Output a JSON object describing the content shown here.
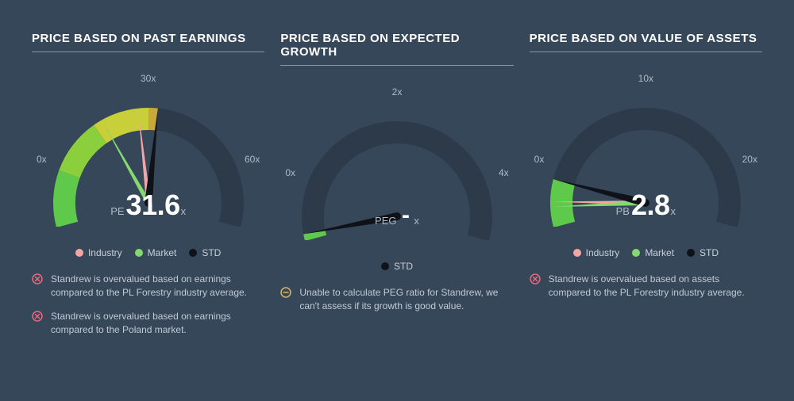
{
  "background_color": "#37475a",
  "text_muted": "#b0bac6",
  "text_body": "#c8d0da",
  "text_white": "#ffffff",
  "rule_color": "#8a96a6",
  "legend_colors": {
    "industry": "#f4a6a6",
    "market": "#86d96f",
    "std": "#0f1218"
  },
  "status_colors": {
    "fail": "#e86a7a",
    "neutral": "#d8b36a"
  },
  "gauge_gradient": [
    "#5fc94b",
    "#8ccf3c",
    "#c8cf38",
    "#c8a83a",
    "#b87548",
    "#9e5150"
  ],
  "gauge_track": "#2d3a4a",
  "panels": [
    {
      "key": "pe",
      "title": "PRICE BASED ON PAST EARNINGS",
      "metric_label": "PE",
      "value_text": "31.6",
      "value_suffix": "x",
      "max": 60,
      "tick_min": "0x",
      "tick_mid": "30x",
      "tick_max": "60x",
      "needles": [
        {
          "fraction": 0.47,
          "color_key": "industry",
          "width": 6
        },
        {
          "fraction": 0.36,
          "color_key": "market",
          "width": 6
        },
        {
          "fraction": 0.527,
          "color_key": "std",
          "width": 10
        }
      ],
      "legend": [
        "industry",
        "market",
        "std"
      ],
      "notes": [
        {
          "status": "fail",
          "text": "Standrew is overvalued based on earnings compared to the PL Forestry industry average."
        },
        {
          "status": "fail",
          "text": "Standrew is overvalued based on earnings compared to the Poland market."
        }
      ]
    },
    {
      "key": "peg",
      "title": "PRICE BASED ON EXPECTED GROWTH",
      "metric_label": "PEG",
      "value_text": "-",
      "value_suffix": "x",
      "max": 4,
      "tick_min": "0x",
      "tick_mid": "2x",
      "tick_max": "4x",
      "needles": [
        {
          "fraction": 0.02,
          "color_key": "std",
          "width": 10
        }
      ],
      "legend": [
        "std"
      ],
      "notes": [
        {
          "status": "neutral",
          "text": "Unable to calculate PEG ratio for Standrew, we can't assess if its growth is good value."
        }
      ]
    },
    {
      "key": "pb",
      "title": "PRICE BASED ON VALUE OF ASSETS",
      "metric_label": "PB",
      "value_text": "2.8",
      "value_suffix": "x",
      "max": 20,
      "tick_min": "0x",
      "tick_mid": "10x",
      "tick_max": "20x",
      "needles": [
        {
          "fraction": 0.075,
          "color_key": "industry",
          "width": 6
        },
        {
          "fraction": 0.06,
          "color_key": "market",
          "width": 6
        },
        {
          "fraction": 0.14,
          "color_key": "std",
          "width": 10
        }
      ],
      "legend": [
        "industry",
        "market",
        "std"
      ],
      "notes": [
        {
          "status": "fail",
          "text": "Standrew is overvalued based on assets compared to the PL Forestry industry average."
        }
      ]
    }
  ],
  "legend_labels": {
    "industry": "Industry",
    "market": "Market",
    "std": "STD"
  }
}
